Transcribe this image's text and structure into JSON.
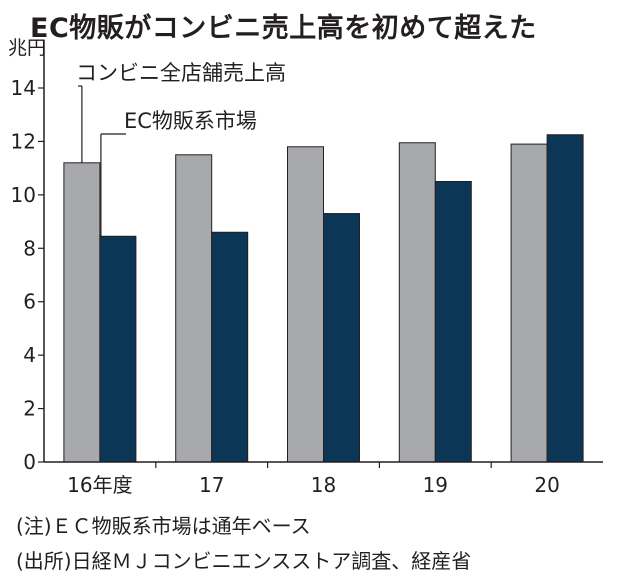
{
  "title": "EC物販がコンビニ売上高を初めて超えた",
  "notes": [
    "(注)ＥＣ物販系市場は通年ベース",
    "(出所)日経ＭＪコンビニエンスストア調査、経産省"
  ],
  "colors": {
    "convenience": "#a7a9ac",
    "ec": "#0b3656",
    "axis": "#231f20"
  },
  "chart_data": {
    "type": "bar",
    "unit": "兆円",
    "categories": [
      "16年度",
      "17",
      "18",
      "19",
      "20"
    ],
    "series": [
      {
        "name": "コンビニ全店舗売上高",
        "values": [
          11.2,
          11.5,
          11.8,
          11.95,
          11.9
        ]
      },
      {
        "name": "EC物販系市場",
        "values": [
          8.45,
          8.6,
          9.3,
          10.5,
          12.25
        ]
      }
    ],
    "ylim": [
      0,
      15
    ],
    "yticks": [
      "0",
      "2",
      "4",
      "6",
      "8",
      "10",
      "12",
      "14"
    ],
    "grid": false,
    "legend": "callout labels at top-left"
  }
}
